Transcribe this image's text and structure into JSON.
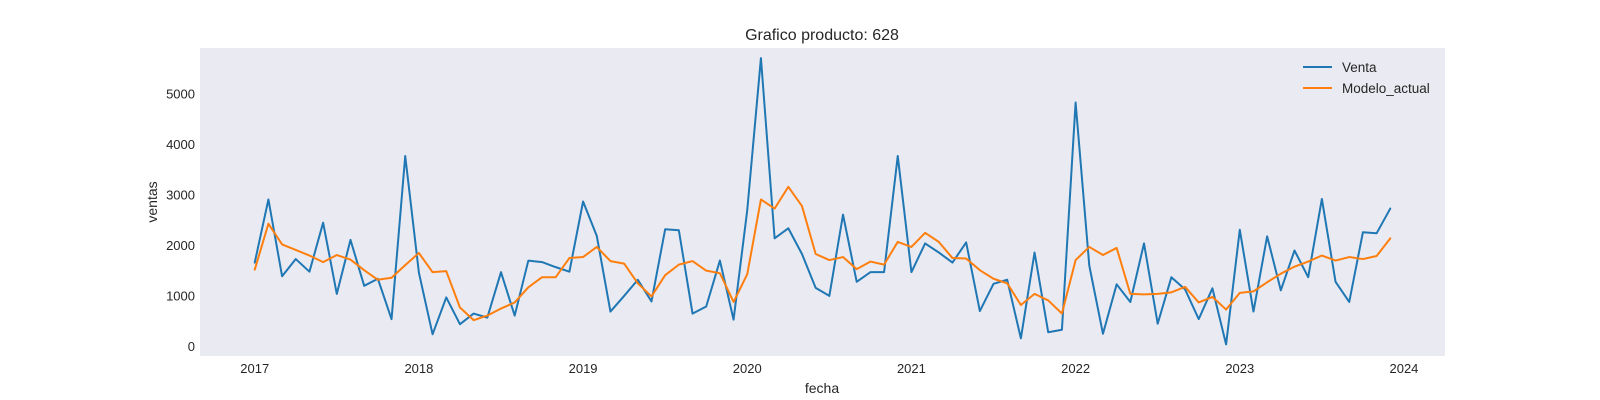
{
  "chart_data": {
    "type": "line",
    "title": "Grafico producto: 628",
    "xlabel": "fecha",
    "ylabel": "ventas",
    "x_start": "2017-01",
    "x_step": "1 month",
    "xlim": [
      "2016-09",
      "2024-04"
    ],
    "ylim": [
      -200,
      5900
    ],
    "x_ticks": [
      "2017",
      "2018",
      "2019",
      "2020",
      "2021",
      "2022",
      "2023",
      "2024"
    ],
    "y_ticks": [
      0,
      1000,
      2000,
      3000,
      4000,
      5000
    ],
    "grid": false,
    "background": "#eaeaf2",
    "legend": {
      "position": "top-right"
    },
    "series": [
      {
        "name": "Venta",
        "color": "#1f77b4",
        "values": [
          1650,
          2900,
          1380,
          1720,
          1470,
          2440,
          1030,
          2100,
          1190,
          1330,
          530,
          3760,
          1450,
          230,
          960,
          430,
          640,
          560,
          1460,
          600,
          1690,
          1660,
          1560,
          1470,
          2860,
          2180,
          680,
          990,
          1310,
          880,
          2310,
          2290,
          640,
          780,
          1690,
          520,
          2690,
          5700,
          2130,
          2330,
          1820,
          1150,
          990,
          2600,
          1270,
          1460,
          1460,
          3760,
          1460,
          2030,
          1850,
          1650,
          2050,
          690,
          1230,
          1310,
          150,
          1850,
          270,
          320,
          4820,
          1590,
          240,
          1220,
          870,
          2030,
          440,
          1360,
          1120,
          530,
          1140,
          30,
          2300,
          680,
          2170,
          1100,
          1890,
          1360,
          2910,
          1270,
          870,
          2250,
          2230,
          2720
        ]
      },
      {
        "name": "Modelo_actual",
        "color": "#ff7f0e",
        "values": [
          1510,
          2420,
          2010,
          1900,
          1790,
          1660,
          1800,
          1710,
          1500,
          1310,
          1350,
          1600,
          1840,
          1460,
          1480,
          760,
          510,
          600,
          740,
          860,
          1160,
          1360,
          1360,
          1740,
          1760,
          1960,
          1680,
          1630,
          1240,
          980,
          1400,
          1610,
          1680,
          1490,
          1440,
          870,
          1420,
          2900,
          2720,
          3150,
          2770,
          1820,
          1700,
          1760,
          1520,
          1670,
          1610,
          2060,
          1960,
          2240,
          2060,
          1740,
          1730,
          1500,
          1330,
          1240,
          810,
          1030,
          900,
          640,
          1700,
          1960,
          1800,
          1940,
          1030,
          1020,
          1030,
          1060,
          1170,
          860,
          970,
          720,
          1050,
          1080,
          1260,
          1430,
          1570,
          1670,
          1790,
          1690,
          1760,
          1720,
          1780,
          2130
        ]
      }
    ]
  }
}
